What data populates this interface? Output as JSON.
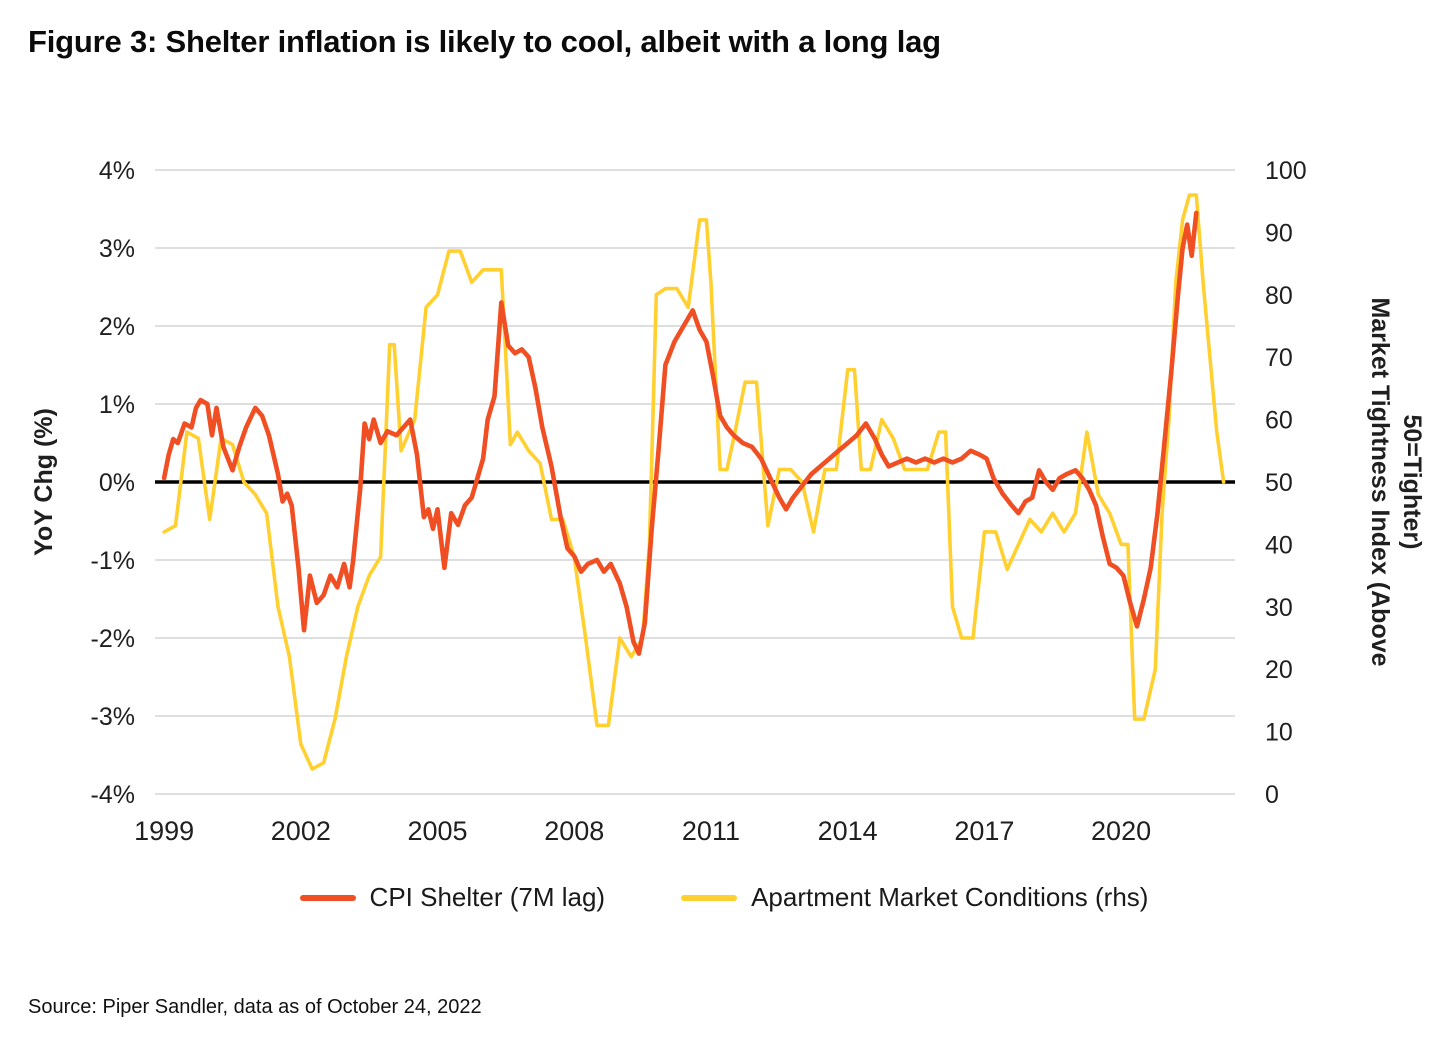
{
  "title": "Figure 3: Shelter inflation is likely to cool, albeit with a long lag",
  "source": "Source: Piper Sandler, data as of October 24, 2022",
  "legend": [
    {
      "label": "CPI Shelter (7M lag)",
      "color": "#F04E23"
    },
    {
      "label": "Apartment Market Conditions (rhs)",
      "color": "#FFD02F"
    }
  ],
  "colors": {
    "grid": "#cccccc",
    "zero_line": "#000000",
    "text": "#1f1f1f"
  },
  "chart_data": {
    "type": "line",
    "title": "Figure 3: Shelter inflation is likely to cool, albeit with a long lag",
    "grid": "horizontal",
    "legend_position": "bottom",
    "x_range": [
      1998.8,
      2022.5
    ],
    "x_ticks": {
      "values": [
        1999,
        2002,
        2005,
        2008,
        2011,
        2014,
        2017,
        2020
      ],
      "labels": [
        "1999",
        "2002",
        "2005",
        "2008",
        "2011",
        "2014",
        "2017",
        "2020"
      ]
    },
    "left_axis": {
      "label": "YoY Chg (%)",
      "min": -4,
      "max": 4,
      "tick_values": [
        4,
        3,
        2,
        1,
        0,
        -1,
        -2,
        -3,
        -4
      ],
      "tick_labels": [
        "4%",
        "3%",
        "2%",
        "1%",
        "0%",
        "-1%",
        "-2%",
        "-3%",
        "-4%"
      ]
    },
    "right_axis": {
      "label": "Market Tightness Index (Above 50=Tighter)",
      "label_lines": [
        "Market Tightness Index (Above",
        "50=Tighter)"
      ],
      "min": 0,
      "max": 100,
      "tick_values": [
        100,
        90,
        80,
        70,
        60,
        50,
        40,
        30,
        20,
        10,
        0
      ],
      "tick_labels": [
        "100",
        "90",
        "80",
        "70",
        "60",
        "50",
        "40",
        "30",
        "20",
        "10",
        "0"
      ]
    },
    "series": [
      {
        "name": "Apartment Market Conditions (rhs)",
        "axis": "right",
        "color": "#FFD02F",
        "x": [
          1999.0,
          1999.25,
          1999.5,
          1999.75,
          2000.0,
          2000.25,
          2000.5,
          2000.75,
          2001.0,
          2001.25,
          2001.5,
          2001.75,
          2002.0,
          2002.25,
          2002.5,
          2002.75,
          2003.0,
          2003.25,
          2003.5,
          2003.75,
          2003.95,
          2004.05,
          2004.2,
          2004.5,
          2004.75,
          2005.0,
          2005.25,
          2005.5,
          2005.75,
          2006.0,
          2006.25,
          2006.4,
          2006.6,
          2006.75,
          2007.0,
          2007.25,
          2007.5,
          2007.75,
          2008.0,
          2008.25,
          2008.5,
          2008.75,
          2009.0,
          2009.25,
          2009.5,
          2009.65,
          2009.8,
          2010.0,
          2010.25,
          2010.5,
          2010.75,
          2010.9,
          2011.0,
          2011.2,
          2011.35,
          2011.5,
          2011.75,
          2012.0,
          2012.25,
          2012.5,
          2012.75,
          2013.0,
          2013.25,
          2013.5,
          2013.75,
          2014.0,
          2014.15,
          2014.3,
          2014.5,
          2014.75,
          2015.0,
          2015.25,
          2015.5,
          2015.75,
          2016.0,
          2016.15,
          2016.3,
          2016.5,
          2016.75,
          2017.0,
          2017.25,
          2017.5,
          2017.75,
          2018.0,
          2018.25,
          2018.5,
          2018.75,
          2019.0,
          2019.25,
          2019.5,
          2019.75,
          2020.0,
          2020.15,
          2020.3,
          2020.5,
          2020.75,
          2020.9,
          2021.05,
          2021.2,
          2021.35,
          2021.5,
          2021.65,
          2021.8,
          2021.95,
          2022.1,
          2022.25
        ],
        "values": [
          42,
          43,
          58,
          57,
          44,
          57,
          56,
          50,
          48,
          45,
          30,
          22,
          8,
          4,
          5,
          12,
          22,
          30,
          35,
          38,
          72,
          72,
          55,
          60,
          78,
          80,
          87,
          87,
          82,
          84,
          84,
          84,
          56,
          58,
          55,
          53,
          44,
          44,
          38,
          25,
          11,
          11,
          25,
          22,
          25,
          40,
          80,
          81,
          81,
          78,
          92,
          92,
          82,
          52,
          52,
          57,
          66,
          66,
          43,
          52,
          52,
          50,
          42,
          52,
          52,
          68,
          68,
          52,
          52,
          60,
          57,
          52,
          52,
          52,
          58,
          58,
          30,
          25,
          25,
          42,
          42,
          36,
          40,
          44,
          42,
          45,
          42,
          45,
          58,
          48,
          45,
          40,
          40,
          12,
          12,
          20,
          45,
          60,
          82,
          92,
          96,
          96,
          82,
          70,
          58,
          50
        ]
      },
      {
        "name": "CPI Shelter (7M lag)",
        "axis": "left",
        "color": "#F04E23",
        "x": [
          1999.0,
          1999.1,
          1999.2,
          1999.3,
          1999.45,
          1999.6,
          1999.7,
          1999.8,
          1999.95,
          2000.05,
          2000.15,
          2000.3,
          2000.5,
          2000.65,
          2000.8,
          2001.0,
          2001.15,
          2001.3,
          2001.5,
          2001.6,
          2001.7,
          2001.8,
          2001.95,
          2002.07,
          2002.2,
          2002.35,
          2002.5,
          2002.65,
          2002.8,
          2002.95,
          2003.07,
          2003.15,
          2003.3,
          2003.4,
          2003.5,
          2003.6,
          2003.75,
          2003.9,
          2004.1,
          2004.25,
          2004.4,
          2004.55,
          2004.7,
          2004.8,
          2004.9,
          2005.0,
          2005.15,
          2005.3,
          2005.45,
          2005.6,
          2005.75,
          2005.85,
          2006.0,
          2006.1,
          2006.25,
          2006.4,
          2006.55,
          2006.7,
          2006.85,
          2007.0,
          2007.15,
          2007.3,
          2007.5,
          2007.7,
          2007.85,
          2008.0,
          2008.15,
          2008.3,
          2008.5,
          2008.65,
          2008.8,
          2009.0,
          2009.15,
          2009.3,
          2009.42,
          2009.55,
          2009.7,
          2009.85,
          2010.0,
          2010.2,
          2010.4,
          2010.6,
          2010.75,
          2010.9,
          2011.05,
          2011.2,
          2011.35,
          2011.5,
          2011.7,
          2011.9,
          2012.1,
          2012.3,
          2012.5,
          2012.65,
          2012.8,
          2013.0,
          2013.2,
          2013.4,
          2013.6,
          2013.8,
          2014.0,
          2014.2,
          2014.4,
          2014.6,
          2014.75,
          2014.9,
          2015.1,
          2015.3,
          2015.5,
          2015.7,
          2015.9,
          2016.1,
          2016.3,
          2016.5,
          2016.7,
          2016.9,
          2017.05,
          2017.2,
          2017.4,
          2017.6,
          2017.75,
          2017.9,
          2018.05,
          2018.2,
          2018.35,
          2018.5,
          2018.65,
          2018.8,
          2019.0,
          2019.15,
          2019.3,
          2019.45,
          2019.6,
          2019.75,
          2019.9,
          2020.05,
          2020.2,
          2020.35,
          2020.5,
          2020.65,
          2020.8,
          2020.95,
          2021.1,
          2021.25,
          2021.35,
          2021.45,
          2021.55,
          2021.65
        ],
        "values": [
          0.05,
          0.35,
          0.55,
          0.5,
          0.75,
          0.7,
          0.95,
          1.05,
          1.0,
          0.6,
          0.95,
          0.45,
          0.15,
          0.45,
          0.7,
          0.95,
          0.85,
          0.6,
          0.1,
          -0.25,
          -0.15,
          -0.3,
          -1.1,
          -1.9,
          -1.2,
          -1.55,
          -1.45,
          -1.2,
          -1.35,
          -1.05,
          -1.35,
          -1.0,
          -0.1,
          0.75,
          0.55,
          0.8,
          0.5,
          0.65,
          0.6,
          0.7,
          0.8,
          0.35,
          -0.45,
          -0.35,
          -0.6,
          -0.35,
          -1.1,
          -0.4,
          -0.55,
          -0.3,
          -0.2,
          0.0,
          0.3,
          0.8,
          1.1,
          2.3,
          1.75,
          1.65,
          1.7,
          1.6,
          1.2,
          0.7,
          0.2,
          -0.45,
          -0.85,
          -0.95,
          -1.15,
          -1.05,
          -1.0,
          -1.15,
          -1.05,
          -1.3,
          -1.6,
          -2.05,
          -2.2,
          -1.8,
          -0.6,
          0.4,
          1.5,
          1.8,
          2.0,
          2.2,
          1.95,
          1.8,
          1.35,
          0.85,
          0.7,
          0.6,
          0.5,
          0.45,
          0.3,
          0.05,
          -0.2,
          -0.35,
          -0.2,
          -0.05,
          0.1,
          0.2,
          0.3,
          0.4,
          0.5,
          0.6,
          0.75,
          0.55,
          0.35,
          0.2,
          0.25,
          0.3,
          0.25,
          0.3,
          0.25,
          0.3,
          0.25,
          0.3,
          0.4,
          0.35,
          0.3,
          0.05,
          -0.15,
          -0.3,
          -0.4,
          -0.25,
          -0.2,
          0.15,
          0.0,
          -0.1,
          0.05,
          0.1,
          0.15,
          0.05,
          -0.1,
          -0.3,
          -0.7,
          -1.05,
          -1.1,
          -1.2,
          -1.55,
          -1.85,
          -1.5,
          -1.1,
          -0.4,
          0.5,
          1.4,
          2.4,
          3.0,
          3.3,
          2.9,
          3.45
        ]
      }
    ]
  }
}
